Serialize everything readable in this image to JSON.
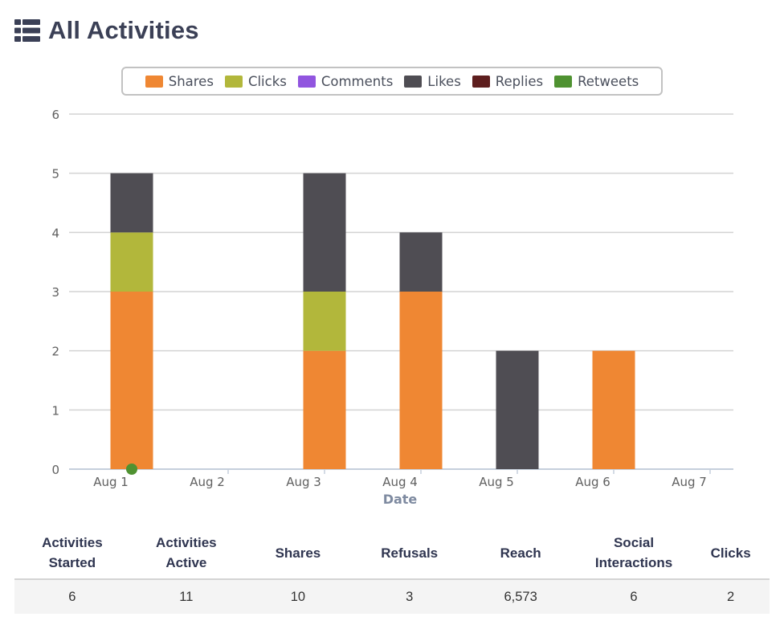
{
  "header": {
    "title": "All Activities",
    "icon": "list-icon"
  },
  "chart_data": {
    "type": "bar",
    "stacked": true,
    "categories": [
      "Aug 1",
      "Aug 2",
      "Aug 3",
      "Aug 4",
      "Aug 5",
      "Aug 6",
      "Aug 7"
    ],
    "xlabel": "Date",
    "ylabel": "",
    "ylim": [
      0,
      6
    ],
    "yticks": [
      "0",
      "1",
      "2",
      "3",
      "4",
      "5",
      "6"
    ],
    "grid": true,
    "legend_position": "top-center",
    "series": [
      {
        "name": "Shares",
        "color": "#ef8733",
        "values": [
          3,
          0,
          2,
          3,
          0,
          2,
          0
        ]
      },
      {
        "name": "Clicks",
        "color": "#b2b73b",
        "values": [
          1,
          0,
          1,
          0,
          0,
          0,
          0
        ]
      },
      {
        "name": "Comments",
        "color": "#9155df",
        "values": [
          0,
          0,
          0,
          0,
          0,
          0,
          0
        ]
      },
      {
        "name": "Likes",
        "color": "#4f4d53",
        "values": [
          1,
          0,
          2,
          1,
          2,
          0,
          0
        ]
      },
      {
        "name": "Replies",
        "color": "#5e1e1e",
        "values": [
          0,
          0,
          0,
          0,
          0,
          0,
          0
        ]
      },
      {
        "name": "Retweets",
        "color": "#4f9231",
        "values": [
          0,
          0,
          0,
          0,
          0,
          0,
          0
        ]
      }
    ],
    "markers": [
      {
        "series": "Retweets",
        "category": "Aug 1",
        "value": 0
      }
    ]
  },
  "stats": {
    "headers": [
      [
        "Activities",
        "Started"
      ],
      [
        "Activities",
        "Active"
      ],
      [
        "Shares"
      ],
      [
        "Refusals"
      ],
      [
        "Reach"
      ],
      [
        "Social",
        "Interactions"
      ],
      [
        "Clicks"
      ]
    ],
    "values": [
      "6",
      "11",
      "10",
      "3",
      "6,573",
      "6",
      "2"
    ]
  }
}
